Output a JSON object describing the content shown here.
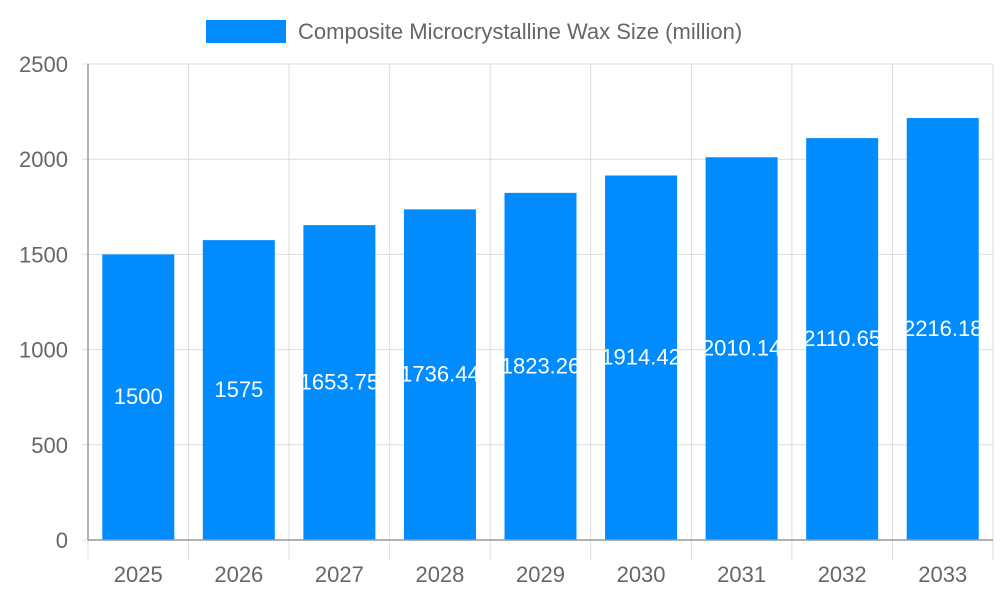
{
  "chart_data": {
    "type": "bar",
    "title": "",
    "xlabel": "",
    "ylabel": "",
    "categories": [
      "2025",
      "2026",
      "2027",
      "2028",
      "2029",
      "2030",
      "2031",
      "2032",
      "2033"
    ],
    "series": [
      {
        "name": "Composite Microcrystalline Wax Size (million)",
        "values": [
          1500,
          1575,
          1653.75,
          1736.44,
          1823.26,
          1914.42,
          2010.14,
          2110.65,
          2216.18
        ],
        "color": "#008cff"
      }
    ],
    "ylim": [
      0,
      2500
    ],
    "yticks": [
      0,
      500,
      1000,
      1500,
      2000,
      2500
    ],
    "grid": true,
    "legend": "top-center",
    "data_labels": true
  }
}
